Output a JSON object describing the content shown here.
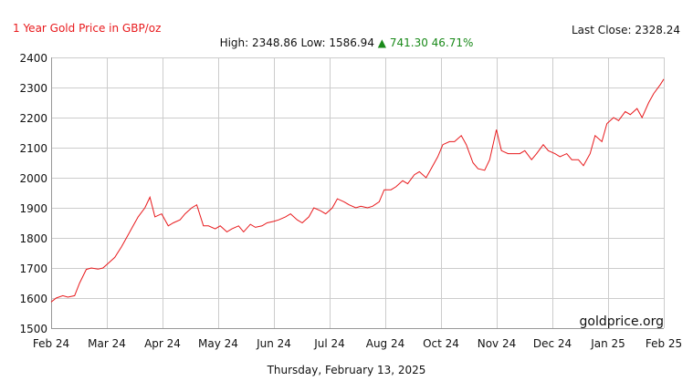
{
  "header": {
    "title": "1 Year Gold Price in GBP/oz",
    "last_close_label": "Last Close:",
    "last_close_value": "2328.24",
    "high_label": "High:",
    "high_value": "2348.86",
    "low_label": "Low:",
    "low_value": "1586.94",
    "change_arrow": "▲",
    "change_value": "741.30",
    "change_pct": "46.71%"
  },
  "footer": {
    "date": "Thursday, February 13, 2025"
  },
  "watermark": "goldprice.org",
  "colors": {
    "line": "#e8191c",
    "grid": "#cccccc",
    "up": "#1a8a1a",
    "title": "#e8191c"
  },
  "chart_data": {
    "type": "line",
    "title": "1 Year Gold Price in GBP/oz",
    "xlabel": "",
    "ylabel": "",
    "ylim": [
      1500,
      2400
    ],
    "yticks": [
      1500,
      1600,
      1700,
      1800,
      1900,
      2000,
      2100,
      2200,
      2300,
      2400
    ],
    "xticks": [
      "Feb 24",
      "Mar 24",
      "Apr 24",
      "May 24",
      "Jun 24",
      "Jul 24",
      "Aug 24",
      "Oct 24",
      "Nov 24",
      "Dec 24",
      "Jan 25",
      "Feb 25"
    ],
    "x_range": [
      "2024-02-13",
      "2025-02-13"
    ],
    "grid": true,
    "legend": "none",
    "series": [
      {
        "x": [
          "2024-02-13",
          "2024-02-16",
          "2024-02-20",
          "2024-02-23",
          "2024-02-27",
          "2024-03-01",
          "2024-03-05",
          "2024-03-08",
          "2024-03-12",
          "2024-03-15",
          "2024-03-19",
          "2024-03-22",
          "2024-03-26",
          "2024-03-29",
          "2024-04-02",
          "2024-04-05",
          "2024-04-09",
          "2024-04-12",
          "2024-04-15",
          "2024-04-19",
          "2024-04-23",
          "2024-04-26",
          "2024-04-30",
          "2024-05-03",
          "2024-05-07",
          "2024-05-10",
          "2024-05-14",
          "2024-05-17",
          "2024-05-21",
          "2024-05-24",
          "2024-05-28",
          "2024-05-31",
          "2024-06-04",
          "2024-06-07",
          "2024-06-11",
          "2024-06-14",
          "2024-06-18",
          "2024-06-21",
          "2024-06-25",
          "2024-06-28",
          "2024-07-02",
          "2024-07-05",
          "2024-07-09",
          "2024-07-12",
          "2024-07-16",
          "2024-07-19",
          "2024-07-23",
          "2024-07-26",
          "2024-07-30",
          "2024-08-02",
          "2024-08-06",
          "2024-08-09",
          "2024-08-13",
          "2024-08-16",
          "2024-08-20",
          "2024-08-23",
          "2024-08-27",
          "2024-08-30",
          "2024-09-03",
          "2024-09-06",
          "2024-09-10",
          "2024-09-13",
          "2024-09-17",
          "2024-09-20",
          "2024-09-24",
          "2024-09-27",
          "2024-10-01",
          "2024-10-04",
          "2024-10-08",
          "2024-10-11",
          "2024-10-15",
          "2024-10-18",
          "2024-10-22",
          "2024-10-25",
          "2024-10-29",
          "2024-11-01",
          "2024-11-05",
          "2024-11-08",
          "2024-11-12",
          "2024-11-15",
          "2024-11-19",
          "2024-11-22",
          "2024-11-26",
          "2024-11-29",
          "2024-12-03",
          "2024-12-06",
          "2024-12-10",
          "2024-12-13",
          "2024-12-17",
          "2024-12-20",
          "2024-12-24",
          "2024-12-27",
          "2024-12-31",
          "2025-01-03",
          "2025-01-07",
          "2025-01-10",
          "2025-01-14",
          "2025-01-17",
          "2025-01-21",
          "2025-01-24",
          "2025-01-28",
          "2025-01-31",
          "2025-02-04",
          "2025-02-07",
          "2025-02-11",
          "2025-02-13"
        ],
        "values": [
          1587,
          1600,
          1608,
          1603,
          1608,
          1650,
          1695,
          1700,
          1696,
          1700,
          1720,
          1735,
          1770,
          1800,
          1840,
          1870,
          1900,
          1935,
          1870,
          1880,
          1840,
          1850,
          1860,
          1880,
          1900,
          1910,
          1840,
          1840,
          1830,
          1840,
          1820,
          1830,
          1840,
          1820,
          1845,
          1835,
          1840,
          1850,
          1855,
          1860,
          1870,
          1880,
          1860,
          1850,
          1870,
          1900,
          1890,
          1880,
          1900,
          1930,
          1920,
          1910,
          1900,
          1905,
          1900,
          1905,
          1920,
          1960,
          1960,
          1970,
          1990,
          1980,
          2010,
          2020,
          2000,
          2030,
          2070,
          2110,
          2120,
          2120,
          2140,
          2110,
          2050,
          2030,
          2025,
          2060,
          2160,
          2090,
          2080,
          2080,
          2080,
          2090,
          2060,
          2080,
          2110,
          2090,
          2080,
          2070,
          2080,
          2060,
          2060,
          2040,
          2080,
          2140,
          2120,
          2180,
          2200,
          2190,
          2220,
          2210,
          2230,
          2200,
          2250,
          2280,
          2310,
          2328
        ]
      }
    ]
  }
}
